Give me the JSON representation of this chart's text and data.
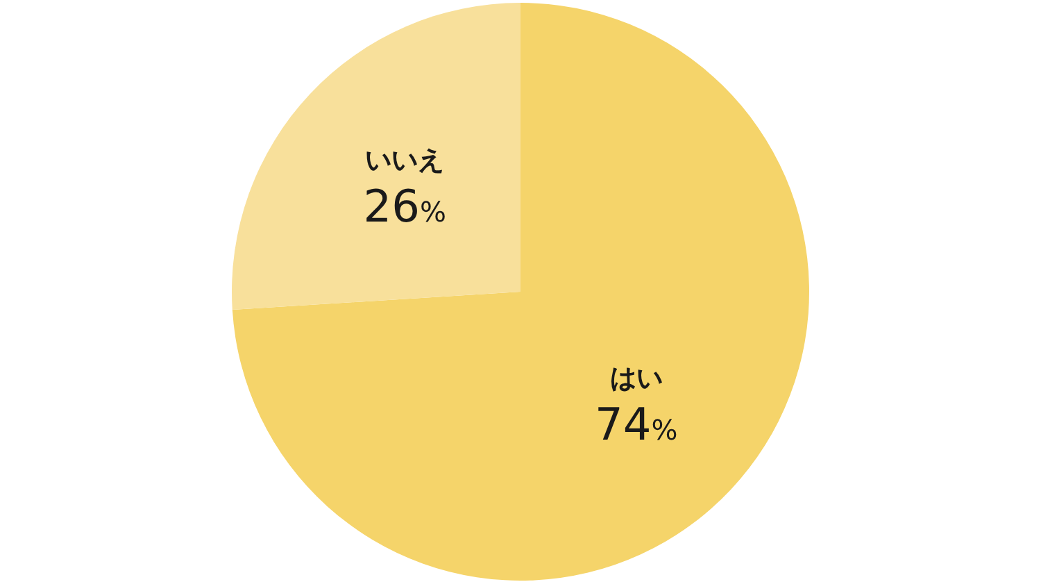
{
  "chart_data": {
    "type": "pie",
    "categories": [
      "はい",
      "いいえ"
    ],
    "values": [
      74,
      26
    ],
    "colors": [
      "#f5d46a",
      "#f8e09b"
    ],
    "value_labels": [
      "74%",
      "26%"
    ]
  }
}
